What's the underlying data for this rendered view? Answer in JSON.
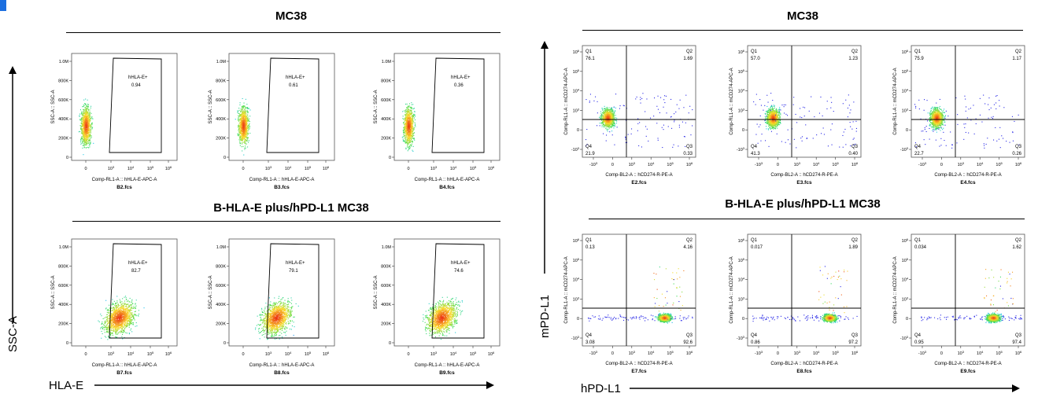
{
  "colors": {
    "accent": "#1c6fe0",
    "gate": "#000000"
  },
  "left_panel": {
    "title_top": "MC38",
    "title_bottom": "B-HLA-E plus/hPD-L1 MC38",
    "x_axis_label": "HLA-E",
    "y_axis_label": "SSC-A"
  },
  "right_panel": {
    "title_top": "MC38",
    "title_bottom": "B-HLA-E plus/hPD-L1 MC38",
    "x_axis_label": "hPD-L1",
    "y_axis_label": "mPD-L1"
  },
  "chart_data": [
    {
      "type": "scatter",
      "plot": "gate",
      "file": "B2.fcs",
      "xlabel": "Comp-RL1-A :: hHLA-E-APC-A",
      "ylabel": "SSC-A :: SSC-A",
      "yticks": [
        "0",
        "200K",
        "400K",
        "600K",
        "800K",
        "1.0M"
      ],
      "xticks": [
        "0",
        "10^3",
        "10^4",
        "10^5",
        "10^6"
      ],
      "gate_name": "hHLA-E+",
      "gate_value": "0.94",
      "population": "low"
    },
    {
      "type": "scatter",
      "plot": "gate",
      "file": "B3.fcs",
      "xlabel": "Comp-RL1-A :: hHLA-E-APC-A",
      "ylabel": "SSC-A :: SSC-A",
      "yticks": [
        "0",
        "200K",
        "400K",
        "600K",
        "800K",
        "1.0M"
      ],
      "xticks": [
        "0",
        "10^3",
        "10^4",
        "10^5",
        "10^6"
      ],
      "gate_name": "hHLA-E+",
      "gate_value": "0.61",
      "population": "low"
    },
    {
      "type": "scatter",
      "plot": "gate",
      "file": "B4.fcs",
      "xlabel": "Comp-RL1-A :: hHLA-E-APC-A",
      "ylabel": "SSC-A :: SSC-A",
      "yticks": [
        "0",
        "200K",
        "400K",
        "600K",
        "800K",
        "1.0M"
      ],
      "xticks": [
        "0",
        "10^3",
        "10^4",
        "10^5",
        "10^6"
      ],
      "gate_name": "hHLA-E+",
      "gate_value": "0.36",
      "population": "low"
    },
    {
      "type": "scatter",
      "plot": "gate",
      "file": "B7.fcs",
      "xlabel": "Comp-RL1-A :: hHLA-E-APC-A",
      "ylabel": "SSC-A :: SSC-A",
      "yticks": [
        "0",
        "200K",
        "400K",
        "600K",
        "800K",
        "1.0M"
      ],
      "xticks": [
        "0",
        "10^3",
        "10^4",
        "10^5",
        "10^6"
      ],
      "gate_name": "hHLA-E+",
      "gate_value": "82.7",
      "population": "high"
    },
    {
      "type": "scatter",
      "plot": "gate",
      "file": "B8.fcs",
      "xlabel": "Comp-RL1-A :: hHLA-E-APC-A",
      "ylabel": "SSC-A :: SSC-A",
      "yticks": [
        "0",
        "200K",
        "400K",
        "600K",
        "800K",
        "1.0M"
      ],
      "xticks": [
        "0",
        "10^3",
        "10^4",
        "10^5",
        "10^6"
      ],
      "gate_name": "hHLA-E+",
      "gate_value": "79.1",
      "population": "high"
    },
    {
      "type": "scatter",
      "plot": "gate",
      "file": "B9.fcs",
      "xlabel": "Comp-RL1-A :: hHLA-E-APC-A",
      "ylabel": "SSC-A :: SSC-A",
      "yticks": [
        "0",
        "200K",
        "400K",
        "600K",
        "800K",
        "1.0M"
      ],
      "xticks": [
        "0",
        "10^3",
        "10^4",
        "10^5",
        "10^6"
      ],
      "gate_name": "hHLA-E+",
      "gate_value": "74.6",
      "population": "high"
    },
    {
      "type": "scatter",
      "plot": "quad",
      "file": "E2.fcs",
      "xlabel": "Comp-BL2-A :: hCD274-R-PE-A",
      "ylabel": "Comp-RL1-A :: mCD274-APC-A",
      "q1": "76.1",
      "q2": "1.69",
      "q3": "0.33",
      "q4": "21.9",
      "population": "upper"
    },
    {
      "type": "scatter",
      "plot": "quad",
      "file": "E3.fcs",
      "xlabel": "Comp-BL2-A :: hCD274-R-PE-A",
      "ylabel": "Comp-RL1-A :: mCD274-APC-A",
      "q1": "57.0",
      "q2": "1.23",
      "q3": "0.40",
      "q4": "41.3",
      "population": "upper"
    },
    {
      "type": "scatter",
      "plot": "quad",
      "file": "E4.fcs",
      "xlabel": "Comp-BL2-A :: hCD274-R-PE-A",
      "ylabel": "Comp-RL1-A :: mCD274-APC-A",
      "q1": "75.9",
      "q2": "1.17",
      "q3": "0.26",
      "q4": "22.7",
      "population": "upper"
    },
    {
      "type": "scatter",
      "plot": "quad",
      "file": "E7.fcs",
      "xlabel": "Comp-BL2-A :: hCD274-R-PE-A",
      "ylabel": "Comp-RL1-A :: mCD274-APC-A",
      "q1": "0.13",
      "q2": "4.16",
      "q3": "92.6",
      "q4": "3.08",
      "population": "right"
    },
    {
      "type": "scatter",
      "plot": "quad",
      "file": "E8.fcs",
      "xlabel": "Comp-BL2-A :: hCD274-R-PE-A",
      "ylabel": "Comp-RL1-A :: mCD274-APC-A",
      "q1": "0.017",
      "q2": "1.89",
      "q3": "97.2",
      "q4": "0.86",
      "population": "right"
    },
    {
      "type": "scatter",
      "plot": "quad",
      "file": "E9.fcs",
      "xlabel": "Comp-BL2-A :: hCD274-R-PE-A",
      "ylabel": "Comp-RL1-A :: mCD274-APC-A",
      "q1": "0.034",
      "q2": "1.62",
      "q3": "97.4",
      "q4": "0.95",
      "population": "right"
    }
  ]
}
